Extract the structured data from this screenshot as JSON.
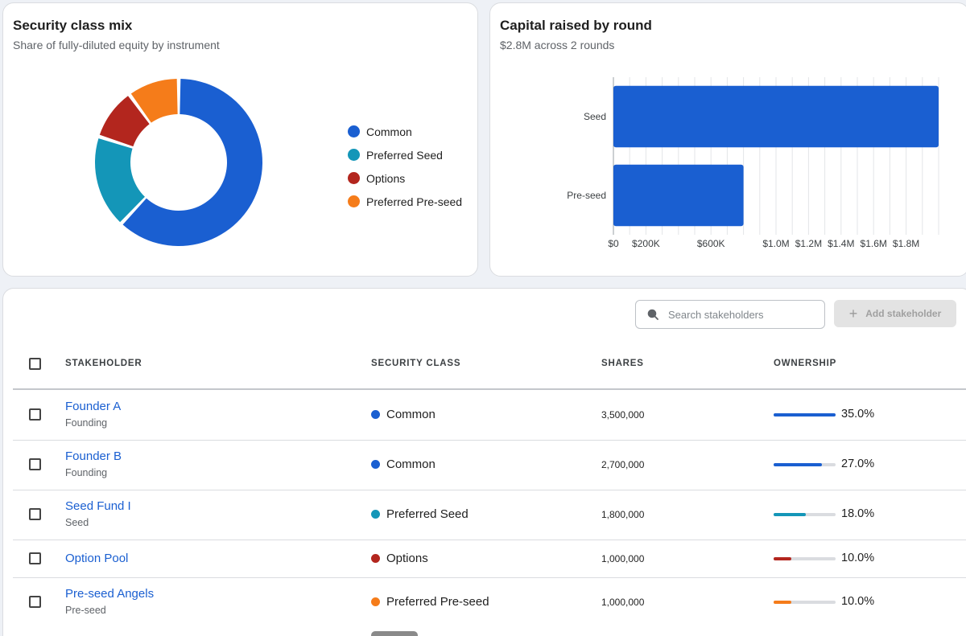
{
  "mix_card": {
    "title": "Security class mix",
    "subtitle": "Share of fully-diluted equity by instrument"
  },
  "capital_card": {
    "title": "Capital raised by round",
    "subtitle": "$2.8M across 2 rounds"
  },
  "chart_data": [
    {
      "type": "pie",
      "variant": "donut",
      "categories": [
        "Common",
        "Preferred Seed",
        "Options",
        "Preferred Pre-seed"
      ],
      "values": [
        62.0,
        18.0,
        10.0,
        10.0
      ],
      "colors": [
        "#1a5fd1",
        "#1496b8",
        "#b3261e",
        "#f57c1a"
      ],
      "legend_position": "right"
    },
    {
      "type": "bar",
      "orientation": "horizontal",
      "categories": [
        "Seed",
        "Pre-seed"
      ],
      "values": [
        2000000,
        800000
      ],
      "xlim": [
        0,
        2000000
      ],
      "x_ticks": [
        "$0",
        "$200K",
        "$600K",
        "$1.0M",
        "$1.2M",
        "$1.4M",
        "$1.6M",
        "$1.8M"
      ],
      "x_tick_values": [
        0,
        200000,
        600000,
        1000000,
        1200000,
        1400000,
        1600000,
        1800000
      ],
      "color": "#1a5fd1",
      "grid": true
    }
  ],
  "toolbar": {
    "search_placeholder": "Search stakeholders",
    "add_label": "Add stakeholder",
    "add_icon": "plus-icon"
  },
  "table": {
    "headers": {
      "stakeholder": "STAKEHOLDER",
      "security_class": "SECURITY CLASS",
      "shares": "SHARES",
      "ownership": "OWNERSHIP"
    },
    "rows": [
      {
        "name": "Founder A",
        "group": "Founding",
        "class": "Common",
        "class_color": "#1a5fd1",
        "shares": "3,500,000",
        "ownership": "35.0%",
        "fraction": 1.0
      },
      {
        "name": "Founder B",
        "group": "Founding",
        "class": "Common",
        "class_color": "#1a5fd1",
        "shares": "2,700,000",
        "ownership": "27.0%",
        "fraction": 0.78
      },
      {
        "name": "Seed Fund I",
        "group": "Seed",
        "class": "Preferred Seed",
        "class_color": "#1496b8",
        "shares": "1,800,000",
        "ownership": "18.0%",
        "fraction": 0.52
      },
      {
        "name": "Option Pool",
        "group": "",
        "class": "Options",
        "class_color": "#b3261e",
        "shares": "1,000,000",
        "ownership": "10.0%",
        "fraction": 0.29
      },
      {
        "name": "Pre-seed Angels",
        "group": "Pre-seed",
        "class": "Preferred Pre-seed",
        "class_color": "#f57c1a",
        "shares": "1,000,000",
        "ownership": "10.0%",
        "fraction": 0.29
      }
    ]
  }
}
